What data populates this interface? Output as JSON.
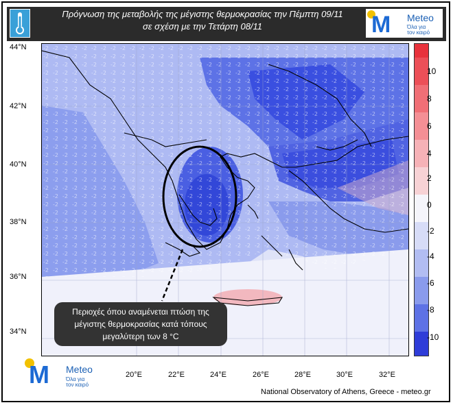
{
  "header": {
    "title_line1": "Πρόγνωση της μεταβολής της μέγιστης θερμοκρασίας την Πέμπτη 09/11",
    "title_line2": "σε σχέση με την Τετάρτη 08/11"
  },
  "logo": {
    "name": "Meteo",
    "tagline_line1": "Όλα για",
    "tagline_line2": "τον καιρό"
  },
  "map": {
    "lat_labels": [
      "44°N",
      "42°N",
      "40°N",
      "38°N",
      "36°N",
      "34°N"
    ],
    "lon_labels": [
      "20°E",
      "22°E",
      "24°E",
      "26°E",
      "28°E",
      "30°E",
      "32°E"
    ],
    "colorbar_labels": [
      "10",
      "8",
      "6",
      "4",
      "2",
      "0",
      "-2",
      "-4",
      "-6",
      "-8",
      "-10"
    ],
    "callout_line1": "Περιοχές όπου αναμένεται πτώση της",
    "callout_line2": "μέγιστης θερμοκρασίας  κατά τόπους",
    "callout_line3": "μεγαλύτερη των 8 °C",
    "credit": "National Observatory of Athens, Greece - meteo.gr",
    "colors": {
      "strong_cold": "#3a4fe0",
      "cold": "#6f86ea",
      "mild_cold": "#aebaf3",
      "neutral": "#eef0fb",
      "warm": "#f4b9be",
      "hot": "#e8323c"
    }
  }
}
